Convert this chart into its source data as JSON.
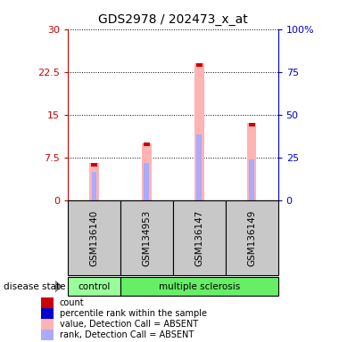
{
  "title": "GDS2978 / 202473_x_at",
  "samples": [
    "GSM136140",
    "GSM134953",
    "GSM136147",
    "GSM136149"
  ],
  "groups": [
    "control",
    "multiple sclerosis",
    "multiple sclerosis",
    "multiple sclerosis"
  ],
  "pink_bar_values": [
    6.5,
    10.0,
    24.0,
    13.5
  ],
  "blue_mark_values": [
    5.0,
    6.5,
    11.5,
    7.2
  ],
  "red_mark_values": [
    6.5,
    10.0,
    24.0,
    13.5
  ],
  "ylim_left": [
    0,
    30
  ],
  "yticks_left": [
    0,
    7.5,
    15,
    22.5,
    30
  ],
  "ytick_labels_left": [
    "0",
    "7.5",
    "15",
    "22.5",
    "30"
  ],
  "ytick_labels_right": [
    "0",
    "25",
    "50",
    "75",
    "100%"
  ],
  "left_axis_color": "#cc0000",
  "right_axis_color": "#0000cc",
  "pink_bar_color": "#ffb3b3",
  "blue_mark_color": "#aaaaff",
  "red_mark_color": "#cc0000",
  "control_color": "#99ff99",
  "ms_color": "#66ee66",
  "sample_bg_color": "#c8c8c8",
  "legend_items": [
    {
      "color": "#cc0000",
      "label": "count"
    },
    {
      "color": "#0000cc",
      "label": "percentile rank within the sample"
    },
    {
      "color": "#ffb3b3",
      "label": "value, Detection Call = ABSENT"
    },
    {
      "color": "#aaaaff",
      "label": "rank, Detection Call = ABSENT"
    }
  ]
}
